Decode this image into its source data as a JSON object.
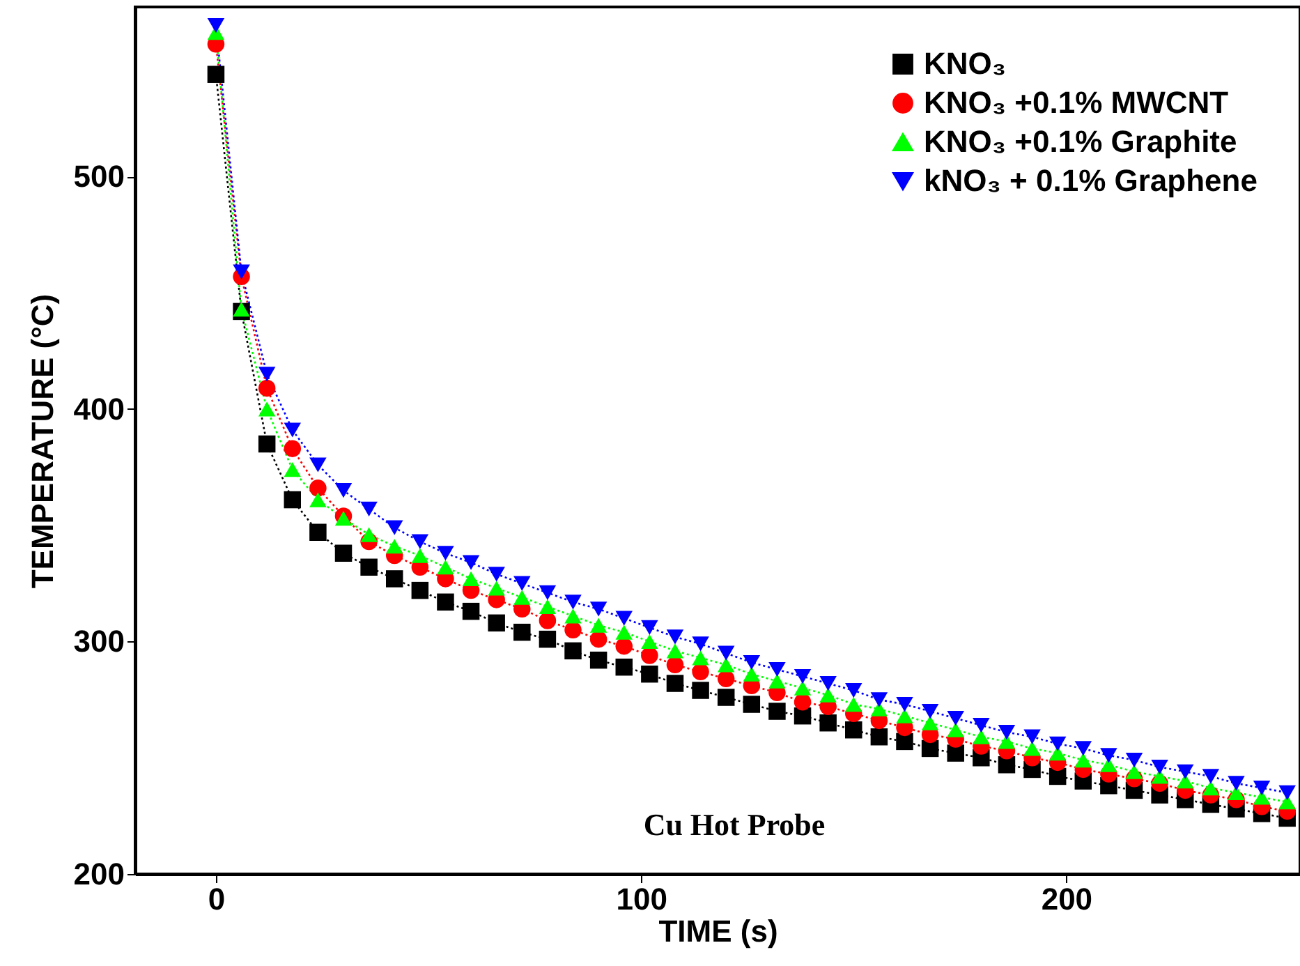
{
  "chart_data": {
    "type": "line",
    "xlabel": "TIME (s)",
    "ylabel": "TEMPERATURE (°C)",
    "x": [
      0,
      6,
      12,
      18,
      24,
      30,
      36,
      42,
      48,
      54,
      60,
      66,
      72,
      78,
      84,
      90,
      96,
      102,
      108,
      114,
      120,
      126,
      132,
      138,
      144,
      150,
      156,
      162,
      168,
      174,
      180,
      186,
      192,
      198,
      204,
      210,
      216,
      222,
      228,
      234,
      240,
      246,
      252
    ],
    "series": [
      {
        "name": "KNO₃",
        "color": "#000000",
        "marker": "square",
        "values": [
          544,
          442,
          385,
          361,
          347,
          338,
          332,
          327,
          322,
          317,
          313,
          308,
          304,
          301,
          296,
          292,
          289,
          286,
          282,
          279,
          276,
          273,
          270,
          268,
          265,
          262,
          259,
          257,
          254,
          252,
          250,
          247,
          245,
          242,
          240,
          238,
          236,
          234,
          232,
          230,
          228,
          226,
          224
        ]
      },
      {
        "name": "KNO₃ +0.1% MWCNT",
        "color": "#ff0000",
        "marker": "circle",
        "values": [
          557,
          457,
          409,
          383,
          366,
          354,
          343,
          337,
          332,
          327,
          322,
          318,
          314,
          309,
          305,
          301,
          298,
          294,
          290,
          287,
          284,
          281,
          278,
          274,
          272,
          269,
          266,
          263,
          260,
          258,
          255,
          253,
          250,
          248,
          245,
          243,
          241,
          239,
          236,
          234,
          232,
          229,
          227
        ]
      },
      {
        "name": "KNO₃ +0.1% Graphite",
        "color": "#00ff00",
        "marker": "triangle",
        "values": [
          562,
          443,
          400,
          374,
          361,
          353,
          346,
          341,
          337,
          332,
          327,
          323,
          319,
          315,
          311,
          307,
          304,
          300,
          296,
          293,
          290,
          286,
          283,
          280,
          277,
          273,
          271,
          268,
          265,
          262,
          259,
          257,
          254,
          252,
          249,
          247,
          244,
          242,
          240,
          237,
          235,
          233,
          231
        ]
      },
      {
        "name": "kNO₃ + 0.1% Graphene",
        "color": "#0000ff",
        "marker": "triangle-down",
        "values": [
          565,
          459,
          415,
          391,
          376,
          365,
          357,
          349,
          343,
          338,
          334,
          329,
          325,
          321,
          317,
          314,
          310,
          306,
          302,
          299,
          295,
          291,
          288,
          285,
          282,
          279,
          275,
          273,
          270,
          267,
          264,
          261,
          259,
          256,
          254,
          251,
          249,
          246,
          244,
          242,
          239,
          237,
          235
        ]
      }
    ],
    "xlim": [
      -19,
      255
    ],
    "xticks": [
      0,
      100,
      200
    ],
    "ylim": [
      200,
      573
    ],
    "yticks": [
      200,
      300,
      400,
      500
    ],
    "line_style": "dotted",
    "grid": false,
    "legend": "top right",
    "annotations": [
      "Cu Hot Probe"
    ]
  }
}
